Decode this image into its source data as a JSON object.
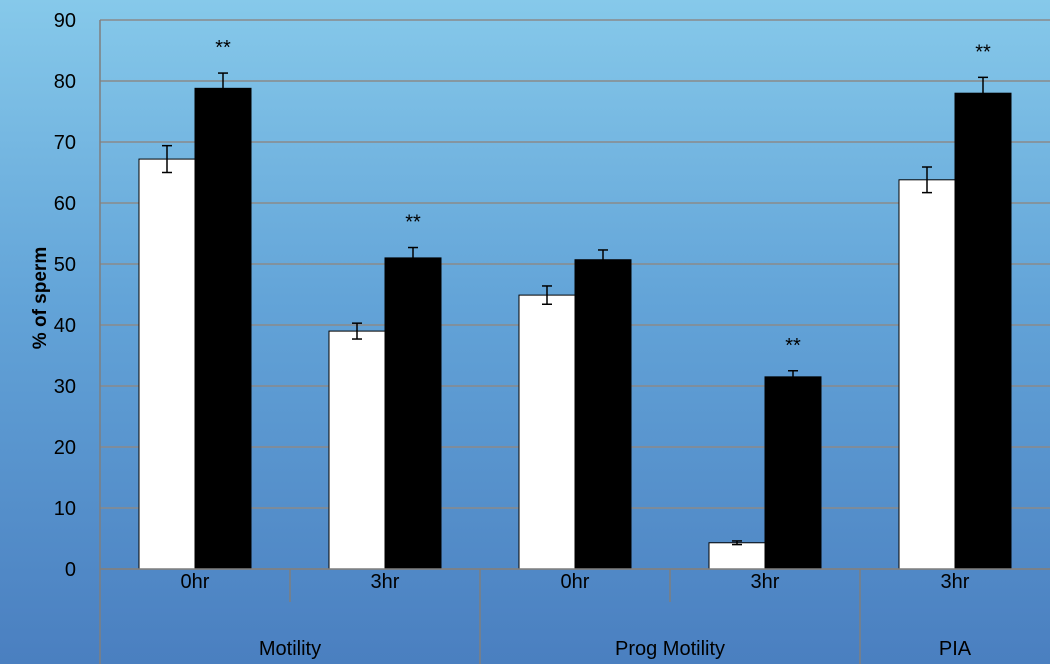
{
  "chart_data": {
    "type": "bar",
    "ylabel": "% of sperm",
    "ylim": [
      0,
      90
    ],
    "yticks": [
      0,
      10,
      20,
      30,
      40,
      50,
      60,
      70,
      80,
      90
    ],
    "grid": true,
    "groups": [
      {
        "label": "Motility",
        "categories": [
          "0hr",
          "3hr"
        ]
      },
      {
        "label": "Prog Motility",
        "categories": [
          "0hr",
          "3hr"
        ]
      },
      {
        "label": "PIA",
        "categories": [
          "3hr"
        ]
      }
    ],
    "categories": [
      "0hr",
      "3hr",
      "0hr",
      "3hr",
      "3hr"
    ],
    "series": [
      {
        "values": [
          67.2,
          39.0,
          44.9,
          4.3,
          63.8
        ],
        "errors": [
          2.2,
          1.3,
          1.5,
          0.3,
          2.1
        ],
        "color": "#ffffff"
      },
      {
        "values": [
          78.8,
          51.0,
          50.7,
          31.5,
          78.0
        ],
        "errors": [
          2.5,
          1.7,
          1.6,
          1.0,
          2.6
        ],
        "color": "#000000"
      }
    ],
    "annotations": [
      {
        "category_index": 0,
        "series_index": 1,
        "text": "**"
      },
      {
        "category_index": 1,
        "series_index": 1,
        "text": "**"
      },
      {
        "category_index": 3,
        "series_index": 1,
        "text": "**"
      },
      {
        "category_index": 4,
        "series_index": 1,
        "text": "**"
      }
    ],
    "colors": {
      "grid": "#8a8a8a",
      "axis": "#7f7f7f",
      "text": "#000000"
    }
  }
}
